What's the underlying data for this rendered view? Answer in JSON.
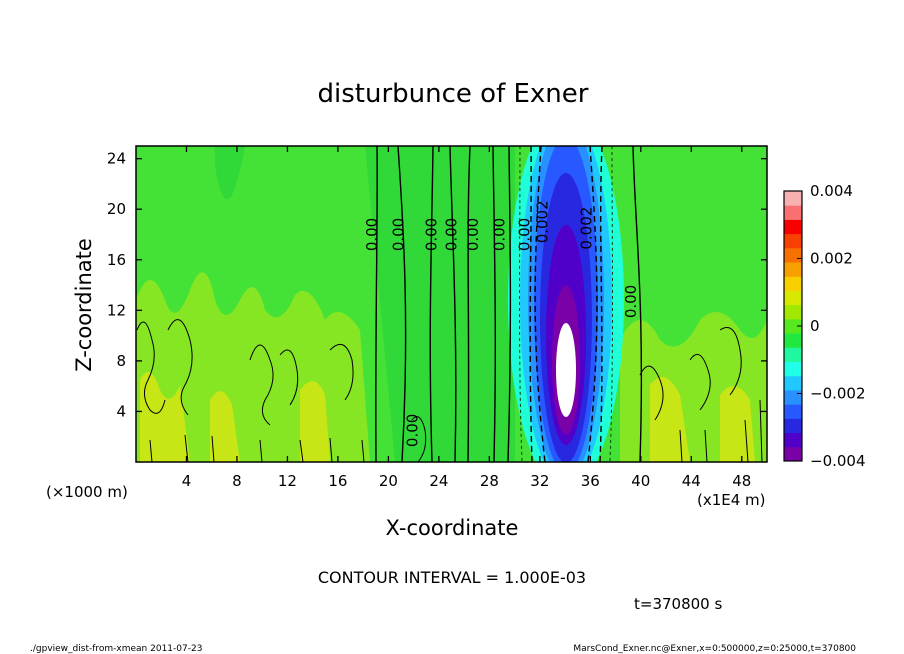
{
  "chart_data": {
    "type": "contour",
    "title": "disturbunce of Exner",
    "xlabel": "X-coordinate",
    "ylabel": "Z-coordinate",
    "x_unit_left": "(×1000 m)",
    "x_unit_right": "(x1E4 m)",
    "xlim": [
      0,
      50
    ],
    "ylim": [
      0,
      25
    ],
    "x_ticks": [
      4,
      8,
      12,
      16,
      20,
      24,
      28,
      32,
      36,
      40,
      44,
      48
    ],
    "y_ticks": [
      4,
      8,
      12,
      16,
      20,
      24
    ],
    "contour_interval_text": "CONTOUR INTERVAL = 1.000E-03",
    "time_text": "t=370800 s",
    "footer_left": "./gpview_dist-from-xmean  2011-07-23",
    "footer_right": "MarsCond_Exner.nc@Exner,x=0:500000,z=0:25000,t=370800",
    "colorbar": {
      "min": -0.004,
      "max": 0.004,
      "tick_labels": [
        "0.004",
        "0.002",
        "0",
        "−0.002",
        "−0.004"
      ],
      "tick_values": [
        0.004,
        0.002,
        0,
        -0.002,
        -0.004
      ],
      "colors": [
        "#7a00a8",
        "#5000c8",
        "#2828e0",
        "#2858ff",
        "#2890ff",
        "#20c8ff",
        "#20ffe8",
        "#20f8a0",
        "#20e840",
        "#58e820",
        "#a0e800",
        "#d8e800",
        "#f8d000",
        "#f8a000",
        "#f87000",
        "#f84000",
        "#f80000",
        "#f87070",
        "#f8b0b0"
      ]
    },
    "contour_labels": [
      {
        "text": "0.00",
        "x": 19.1,
        "z": 18.0
      },
      {
        "text": "0.00",
        "x": 21.2,
        "z": 18.0
      },
      {
        "text": "0.00",
        "x": 23.8,
        "z": 18.0
      },
      {
        "text": "0.00",
        "x": 25.4,
        "z": 18.0
      },
      {
        "text": "0.00",
        "x": 27.1,
        "z": 18.0
      },
      {
        "text": "0.00",
        "x": 29.2,
        "z": 18.0
      },
      {
        "text": "0.00",
        "x": 31.2,
        "z": 18.0
      },
      {
        "text": "0.002",
        "x": 32.6,
        "z": 19.0
      },
      {
        "text": "0.002",
        "x": 36.1,
        "z": 18.5
      },
      {
        "text": "0.00",
        "x": 39.6,
        "z": 12.7
      },
      {
        "text": "0.00",
        "x": 22.3,
        "z": 2.5
      }
    ]
  }
}
